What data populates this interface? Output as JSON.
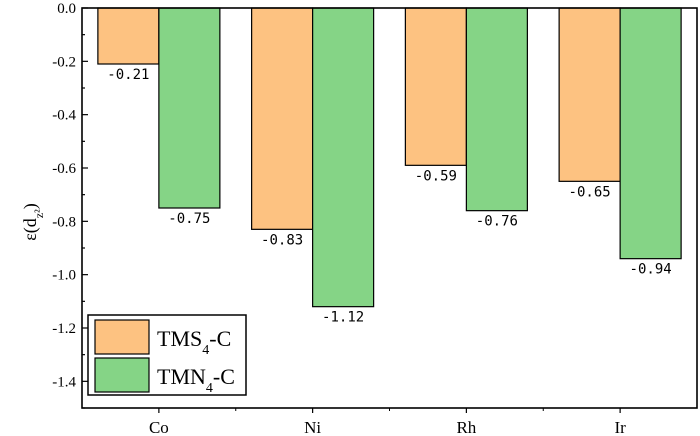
{
  "chart_data": {
    "type": "bar",
    "categories": [
      "Co",
      "Ni",
      "Rh",
      "Ir"
    ],
    "series": [
      {
        "name": "TMS₄-C",
        "name_base": "TMS",
        "name_sub": "4",
        "name_tail": "-C",
        "color": "#FDC281",
        "values": [
          -0.21,
          -0.83,
          -0.59,
          -0.65
        ],
        "labels": [
          "-0.21",
          "-0.83",
          "-0.59",
          "-0.65"
        ]
      },
      {
        "name": "TMN₄-C",
        "name_base": "TMN",
        "name_sub": "4",
        "name_tail": "-C",
        "color": "#85D486",
        "values": [
          -0.75,
          -1.12,
          -0.76,
          -0.94
        ],
        "labels": [
          "-0.75",
          "-1.12",
          "-0.76",
          "-0.94"
        ]
      }
    ],
    "ylabel": "ε(d_z²)",
    "ylabel_parts": {
      "base": "ε(d",
      "sub": "z²",
      "tail": ")"
    },
    "ylim": [
      -1.5,
      0.0
    ],
    "yticks": [
      "0.0",
      "-0.2",
      "-0.4",
      "-0.6",
      "-0.8",
      "-1.0",
      "-1.2",
      "-1.4"
    ],
    "legend_position": "bottom-left",
    "grid": false
  }
}
